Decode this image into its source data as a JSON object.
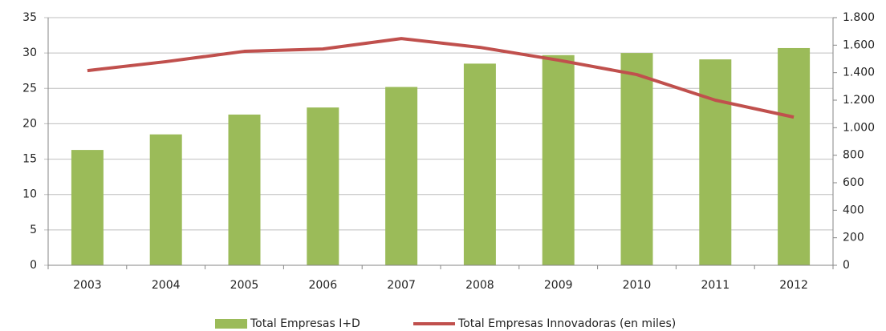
{
  "chart_data": {
    "type": "bar_line",
    "categories": [
      "2003",
      "2004",
      "2005",
      "2006",
      "2007",
      "2008",
      "2009",
      "2010",
      "2011",
      "2012"
    ],
    "series": [
      {
        "name": "Total Empresas I+D",
        "type": "bar",
        "color": "#9bbb59",
        "values": [
          16.3,
          18.5,
          21.3,
          22.3,
          25.2,
          28.5,
          29.7,
          30.0,
          29.1,
          30.7
        ]
      },
      {
        "name": "Total Empresas Innovadoras (en miles)",
        "type": "line",
        "axis": "y2",
        "color": "#c0504d",
        "values": [
          1415,
          1480,
          1555,
          1572,
          1648,
          1584,
          1491,
          1386,
          1200,
          1077
        ]
      }
    ],
    "ylim": [
      0,
      35
    ],
    "yticks": [
      0,
      5,
      10,
      15,
      20,
      25,
      30,
      35
    ],
    "y2lim": [
      0,
      1800
    ],
    "y2ticks": [
      0,
      200,
      400,
      600,
      800,
      {
        "value": 1000,
        "label": "1.000"
      },
      {
        "value": 1200,
        "label": "1.200"
      },
      {
        "value": 1400,
        "label": "1.400"
      },
      {
        "value": 1600,
        "label": "1.600"
      },
      {
        "value": 1800,
        "label": "1.800"
      }
    ],
    "grid": true,
    "legend": "bottom"
  }
}
